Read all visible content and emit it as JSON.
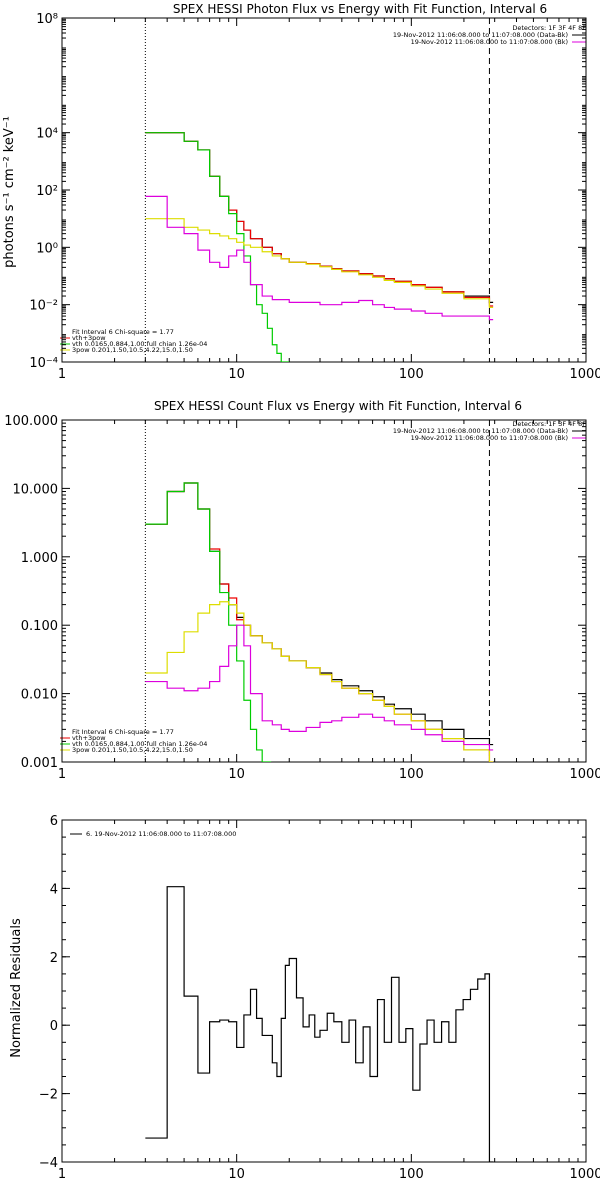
{
  "chart_data": [
    {
      "type": "line",
      "title": "SPEX HESSI Photon Flux vs Energy with Fit Function, Interval 6",
      "ylabel": "photons s⁻¹ cm⁻² keV⁻¹",
      "xscale": "log",
      "yscale": "log",
      "xlim": [
        1,
        1000
      ],
      "ylim": [
        0.0001,
        100000000
      ],
      "xticks": [
        1,
        10,
        100,
        1000
      ],
      "xtick_labels": [
        "1",
        "10",
        "100",
        "1000"
      ],
      "yticks": [
        0.0001,
        0.01,
        1,
        100,
        10000,
        100000000
      ],
      "ytick_labels": [
        "10⁻⁴",
        "10⁻²",
        "10⁰",
        "10²",
        "10⁴",
        "10⁸"
      ],
      "vlines": [
        {
          "x": 3,
          "style": "dotted",
          "color": "#000000"
        },
        {
          "x": 280,
          "style": "dashed",
          "color": "#000000"
        }
      ],
      "legend_top": {
        "placement": "top-right",
        "heading": "Detectors: 1F 3F 4F 8F",
        "entries": [
          {
            "label": "19-Nov-2012 11:06:08.000 to 11:07:08.000 (Data-Bk)",
            "color": "#000000"
          },
          {
            "label": "19-Nov-2012 11:06:08.000 to 11:07:08.000 (Bk)",
            "color": "#dd00dd"
          }
        ]
      },
      "legend_bottom": {
        "placement": "bottom-left",
        "heading": "Fit Interval 6   Chi-square = 1.77",
        "entries": [
          {
            "label": "vth+3pow",
            "color": "#ee0000"
          },
          {
            "label": "vth 0.0165,0.884,1.00  full chian 1.26e-04",
            "color": "#00cc00"
          },
          {
            "label": "3pow 0.201,1.50,10.5,4.22,15.0,1.50",
            "color": "#dddd00"
          }
        ]
      },
      "series": [
        {
          "name": "Data-Bk",
          "color": "#000000",
          "step": true,
          "x": [
            3,
            4,
            5,
            6,
            7,
            8,
            9,
            10,
            11,
            12,
            14,
            16,
            18,
            20,
            25,
            30,
            35,
            40,
            50,
            60,
            70,
            80,
            100,
            120,
            150,
            200,
            280
          ],
          "y": [
            10000,
            10000,
            5000,
            2500,
            300,
            60,
            20,
            8,
            4,
            2,
            1,
            0.6,
            0.4,
            0.3,
            0.27,
            0.22,
            0.18,
            0.15,
            0.12,
            0.1,
            0.08,
            0.065,
            0.05,
            0.04,
            0.028,
            0.02,
            0.012
          ]
        },
        {
          "name": "vth+3pow",
          "color": "#ee0000",
          "step": true,
          "x": [
            3,
            4,
            5,
            6,
            7,
            8,
            9,
            10,
            11,
            12,
            14,
            16,
            18,
            20,
            25,
            30,
            35,
            40,
            50,
            60,
            70,
            80,
            100,
            120,
            150,
            200,
            280
          ],
          "y": [
            10000,
            10000,
            5000,
            2500,
            300,
            60,
            20,
            8,
            4,
            2,
            1,
            0.6,
            0.4,
            0.3,
            0.27,
            0.22,
            0.18,
            0.15,
            0.12,
            0.1,
            0.08,
            0.065,
            0.05,
            0.04,
            0.028,
            0.018,
            0.009
          ]
        },
        {
          "name": "vth",
          "color": "#00cc00",
          "step": true,
          "x": [
            3,
            4,
            5,
            6,
            7,
            8,
            9,
            10,
            11,
            12,
            13,
            14,
            15,
            16,
            17,
            18,
            19
          ],
          "y": [
            10000,
            10000,
            5000,
            2500,
            300,
            60,
            15,
            3,
            0.5,
            0.05,
            0.01,
            0.005,
            0.0015,
            0.0004,
            0.0002,
            0.0001,
            0.0001
          ]
        },
        {
          "name": "3pow",
          "color": "#dddd00",
          "step": true,
          "x": [
            3,
            4,
            5,
            6,
            7,
            8,
            9,
            10,
            11,
            12,
            14,
            16,
            18,
            20,
            25,
            30,
            35,
            40,
            50,
            60,
            70,
            80,
            100,
            120,
            150,
            200,
            280
          ],
          "y": [
            10,
            10,
            5,
            4,
            3,
            2.5,
            2,
            1.5,
            1.2,
            1,
            0.7,
            0.5,
            0.4,
            0.3,
            0.26,
            0.21,
            0.17,
            0.14,
            0.11,
            0.09,
            0.07,
            0.06,
            0.045,
            0.035,
            0.025,
            0.016,
            0.008
          ]
        },
        {
          "name": "Bk",
          "color": "#dd00dd",
          "step": true,
          "x": [
            3,
            4,
            5,
            6,
            7,
            8,
            9,
            10,
            11,
            12,
            14,
            16,
            18,
            20,
            25,
            30,
            35,
            40,
            50,
            60,
            70,
            80,
            100,
            120,
            150,
            200,
            280
          ],
          "y": [
            60,
            5,
            3,
            0.8,
            0.3,
            0.2,
            0.5,
            0.8,
            0.3,
            0.05,
            0.02,
            0.015,
            0.015,
            0.012,
            0.012,
            0.01,
            0.01,
            0.012,
            0.014,
            0.01,
            0.008,
            0.007,
            0.006,
            0.005,
            0.004,
            0.004,
            0.003
          ]
        }
      ]
    },
    {
      "type": "line",
      "title": "SPEX HESSI Count Flux vs Energy with Fit Function, Interval 6",
      "ylabel": "",
      "xscale": "log",
      "yscale": "log",
      "xlim": [
        1,
        1000
      ],
      "ylim": [
        0.001,
        100
      ],
      "xticks": [
        1,
        10,
        100,
        1000
      ],
      "xtick_labels": [
        "1",
        "10",
        "100",
        "1000"
      ],
      "yticks": [
        0.001,
        0.01,
        0.1,
        1,
        10,
        100
      ],
      "ytick_labels": [
        "0.001",
        "0.010",
        "0.100",
        "1.000",
        "10.000",
        "100.000"
      ],
      "vlines": [
        {
          "x": 3,
          "style": "dotted",
          "color": "#000000"
        },
        {
          "x": 280,
          "style": "dashed",
          "color": "#000000"
        }
      ],
      "legend_top": {
        "placement": "top-right",
        "heading": "Detectors: 1F 3F 4F 8F",
        "entries": [
          {
            "label": "19-Nov-2012 11:06:08.000 to 11:07:08.000 (Data-Bk)",
            "color": "#000000"
          },
          {
            "label": "19-Nov-2012 11:06:08.000 to 11:07:08.000 (Bk)",
            "color": "#dd00dd"
          }
        ]
      },
      "legend_bottom": {
        "placement": "bottom-left",
        "heading": "Fit Interval 6   Chi-square = 1.77",
        "entries": [
          {
            "label": "vth+3pow",
            "color": "#ee0000"
          },
          {
            "label": "vth 0.0165,0.884,1.00  full chian 1.26e-04",
            "color": "#00cc00"
          },
          {
            "label": "3pow 0.201,1.50,10.5,4.22,15.0,1.50",
            "color": "#dddd00"
          }
        ]
      },
      "series": [
        {
          "name": "Data-Bk",
          "color": "#000000",
          "step": true,
          "x": [
            3,
            4,
            5,
            6,
            7,
            8,
            9,
            10,
            11,
            12,
            14,
            16,
            18,
            20,
            25,
            30,
            35,
            40,
            50,
            60,
            70,
            80,
            100,
            120,
            150,
            200,
            280
          ],
          "y": [
            3,
            9,
            12,
            5,
            1.2,
            0.4,
            0.2,
            0.13,
            0.1,
            0.07,
            0.055,
            0.045,
            0.035,
            0.03,
            0.024,
            0.02,
            0.016,
            0.013,
            0.011,
            0.009,
            0.007,
            0.006,
            0.005,
            0.004,
            0.003,
            0.0022,
            0.0018
          ]
        },
        {
          "name": "vth+3pow",
          "color": "#ee0000",
          "step": true,
          "x": [
            3,
            4,
            5,
            6,
            7,
            8,
            9,
            10,
            11,
            12,
            14,
            16,
            18,
            20,
            25,
            30,
            35,
            40,
            50,
            60,
            70,
            80,
            100,
            120,
            150,
            200,
            280
          ],
          "y": [
            3,
            9,
            12,
            5,
            1.3,
            0.4,
            0.25,
            0.12,
            0.1,
            0.07,
            0.055,
            0.045,
            0.035,
            0.03,
            0.024,
            0.019,
            0.015,
            0.012,
            0.01,
            0.008,
            0.0065,
            0.005,
            0.004,
            0.003,
            0.0022,
            0.0015,
            0.001
          ]
        },
        {
          "name": "vth",
          "color": "#00cc00",
          "step": true,
          "x": [
            3,
            4,
            5,
            6,
            7,
            8,
            9,
            10,
            11,
            12,
            13,
            14,
            15
          ],
          "y": [
            3,
            9,
            12,
            5,
            1.2,
            0.3,
            0.1,
            0.03,
            0.008,
            0.003,
            0.0015,
            0.001,
            0.001
          ]
        },
        {
          "name": "3pow",
          "color": "#dddd00",
          "step": true,
          "x": [
            3,
            4,
            5,
            6,
            7,
            8,
            9,
            10,
            11,
            12,
            14,
            16,
            18,
            20,
            25,
            30,
            35,
            40,
            50,
            60,
            70,
            80,
            100,
            120,
            150,
            200,
            280
          ],
          "y": [
            0.02,
            0.04,
            0.08,
            0.15,
            0.2,
            0.22,
            0.2,
            0.15,
            0.1,
            0.07,
            0.055,
            0.045,
            0.035,
            0.03,
            0.024,
            0.019,
            0.015,
            0.012,
            0.01,
            0.008,
            0.0065,
            0.005,
            0.004,
            0.003,
            0.0022,
            0.0015,
            0.001
          ]
        },
        {
          "name": "Bk",
          "color": "#dd00dd",
          "step": true,
          "x": [
            3,
            4,
            5,
            6,
            7,
            8,
            9,
            10,
            11,
            12,
            14,
            16,
            18,
            20,
            25,
            30,
            35,
            40,
            50,
            60,
            70,
            80,
            100,
            120,
            150,
            200,
            280
          ],
          "y": [
            0.015,
            0.012,
            0.011,
            0.012,
            0.015,
            0.025,
            0.05,
            0.1,
            0.05,
            0.01,
            0.004,
            0.0035,
            0.003,
            0.0028,
            0.0032,
            0.0038,
            0.004,
            0.0045,
            0.005,
            0.0045,
            0.004,
            0.0035,
            0.003,
            0.0025,
            0.002,
            0.0018,
            0.0015
          ]
        }
      ]
    },
    {
      "type": "line",
      "title": "",
      "ylabel": "Normalized Residuals",
      "xscale": "log",
      "yscale": "linear",
      "xlim": [
        1,
        1000
      ],
      "ylim": [
        -4,
        6
      ],
      "xticks": [
        1,
        10,
        100,
        1000
      ],
      "xtick_labels": [
        "1",
        "10",
        "100",
        "1000"
      ],
      "yticks": [
        -4,
        -2,
        0,
        2,
        4,
        6
      ],
      "ytick_labels": [
        "−4",
        "−2",
        "0",
        "2",
        "4",
        "6"
      ],
      "legend_top": {
        "placement": "top-left",
        "heading": "",
        "entries": [
          {
            "label": "6. 19-Nov-2012 11:06:08.000 to 11:07:08.000",
            "color": "#000000"
          }
        ]
      },
      "series": [
        {
          "name": "residuals",
          "color": "#000000",
          "step": true,
          "x": [
            3,
            4,
            5,
            6,
            7,
            8,
            9,
            10,
            11,
            12,
            13,
            14,
            15,
            16,
            17,
            18,
            19,
            20,
            22,
            24,
            26,
            28,
            30,
            33,
            36,
            40,
            44,
            48,
            53,
            58,
            64,
            70,
            77,
            85,
            93,
            102,
            112,
            123,
            135,
            149,
            164,
            180,
            198,
            218,
            240,
            264,
            280
          ],
          "y": [
            -3.3,
            4.05,
            0.85,
            -1.4,
            0.1,
            0.15,
            0.1,
            -0.65,
            0.3,
            1.05,
            0.2,
            -0.3,
            -0.3,
            -1.1,
            -1.5,
            0.2,
            1.75,
            1.95,
            0.8,
            -0.05,
            0.3,
            -0.35,
            -0.15,
            0.35,
            0.1,
            -0.5,
            0.15,
            -1.1,
            -0.05,
            -1.5,
            0.75,
            -0.5,
            1.4,
            -0.5,
            -0.1,
            -1.9,
            -0.55,
            0.15,
            -0.5,
            0.1,
            -0.5,
            0.45,
            0.75,
            1.05,
            1.35,
            1.5,
            -4
          ]
        }
      ]
    }
  ]
}
